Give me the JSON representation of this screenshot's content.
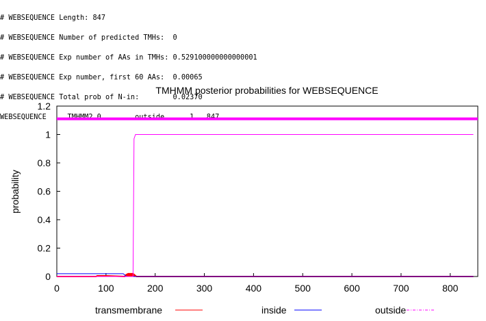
{
  "header_lines": [
    "# WEBSEQUENCE Length: 847",
    "# WEBSEQUENCE Number of predicted TMHs:  0",
    "# WEBSEQUENCE Exp number of AAs in TMHs: 0.529100000000000001",
    "# WEBSEQUENCE Exp number, first 60 AAs:  0.00065",
    "# WEBSEQUENCE Total prob of N-in:        0.02370",
    "WEBSEQUENCE     TMHMM2.0        outside      1   847"
  ],
  "chart_data": {
    "type": "line",
    "title": "TMHMM posterior probabilities for WEBSEQUENCE",
    "xlabel": "",
    "ylabel": "probability",
    "xlim": [
      0,
      847
    ],
    "ylim": [
      0,
      1.2
    ],
    "xticks": [
      "0",
      "100",
      "200",
      "300",
      "400",
      "500",
      "600",
      "700",
      "800"
    ],
    "yticks": [
      "0",
      "0.2",
      "0.4",
      "0.6",
      "0.8",
      "1",
      "1.2"
    ],
    "colors": {
      "transmembrane": "#ff0000",
      "inside": "#0000ff",
      "outside": "#ff00ff"
    },
    "topology_bar": {
      "label": "outside",
      "start": 1,
      "end": 847,
      "y": 1.11
    },
    "series": [
      {
        "name": "transmembrane",
        "points": [
          [
            0,
            0
          ],
          [
            80,
            0
          ],
          [
            82,
            0.005
          ],
          [
            100,
            0.005
          ],
          [
            138,
            0
          ],
          [
            140,
            0.01
          ],
          [
            145,
            0.02
          ],
          [
            155,
            0.02
          ],
          [
            162,
            0
          ],
          [
            847,
            0
          ]
        ]
      },
      {
        "name": "inside",
        "points": [
          [
            0,
            0.02
          ],
          [
            135,
            0.02
          ],
          [
            142,
            0
          ],
          [
            847,
            0
          ]
        ]
      },
      {
        "name": "outside",
        "points": [
          [
            0,
            0
          ],
          [
            155,
            0
          ],
          [
            157,
            0.97
          ],
          [
            160,
            1
          ],
          [
            847,
            1
          ]
        ]
      }
    ],
    "legend": [
      "transmembrane",
      "inside",
      "outside"
    ],
    "legend_position": "bottom"
  }
}
